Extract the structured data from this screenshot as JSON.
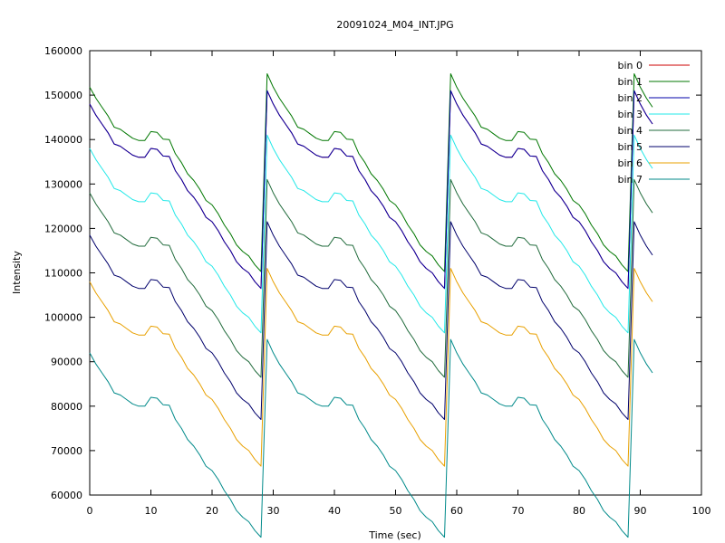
{
  "chart_data": {
    "type": "line",
    "title": "20091024_M04_INT.JPG",
    "xlabel": "Time (sec)",
    "ylabel": "Intensity",
    "xlim": [
      0,
      100
    ],
    "ylim": [
      60000,
      160000
    ],
    "xticks": [
      0,
      10,
      20,
      30,
      40,
      50,
      60,
      70,
      80,
      90,
      100
    ],
    "yticks": [
      60000,
      70000,
      80000,
      90000,
      100000,
      110000,
      120000,
      130000,
      140000,
      150000,
      160000
    ],
    "grid": false,
    "legend_position": "top-right",
    "x": [
      0,
      1,
      2,
      3,
      4,
      5,
      6,
      7,
      8,
      9,
      10,
      11,
      12,
      13,
      14,
      15,
      16,
      17,
      18,
      19,
      20,
      21,
      22,
      23,
      24,
      25,
      26,
      27,
      28,
      29,
      30,
      31,
      32,
      33,
      34,
      35,
      36,
      37,
      38,
      39,
      40,
      41,
      42,
      43,
      44,
      45,
      46,
      47,
      48,
      49,
      50,
      51,
      52,
      53,
      54,
      55,
      56,
      57,
      58,
      59,
      60,
      61,
      62,
      63,
      64,
      65,
      66,
      67,
      68,
      69,
      70,
      71,
      72,
      73,
      74,
      75,
      76,
      77,
      78,
      79,
      80,
      81,
      82,
      83,
      84,
      85,
      86,
      87,
      88,
      89,
      90,
      91,
      92
    ],
    "base_cycle": [
      148000,
      145500,
      143500,
      141500,
      139000,
      138500,
      137500,
      136500,
      136000,
      136000,
      138000,
      137800,
      136300,
      136200,
      133000,
      131000,
      128500,
      127000,
      125000,
      122500,
      121500,
      119500,
      117000,
      115000,
      112500,
      111000,
      110000,
      108000,
      106500,
      151000
    ],
    "series": [
      {
        "name": "bin 0",
        "color": "#cc0000",
        "offset": 0
      },
      {
        "name": "bin 1",
        "color": "#007700",
        "offset": 3800
      },
      {
        "name": "bin 2",
        "color": "#0000aa",
        "offset": 0
      },
      {
        "name": "bin 3",
        "color": "#22e8e8",
        "offset": -10000
      },
      {
        "name": "bin 4",
        "color": "#216b3c",
        "offset": -20000
      },
      {
        "name": "bin 5",
        "color": "#00006b",
        "offset": -29500
      },
      {
        "name": "bin 6",
        "color": "#e8a000",
        "offset": -40000
      },
      {
        "name": "bin 7",
        "color": "#008a8a",
        "offset": -56000
      }
    ]
  }
}
